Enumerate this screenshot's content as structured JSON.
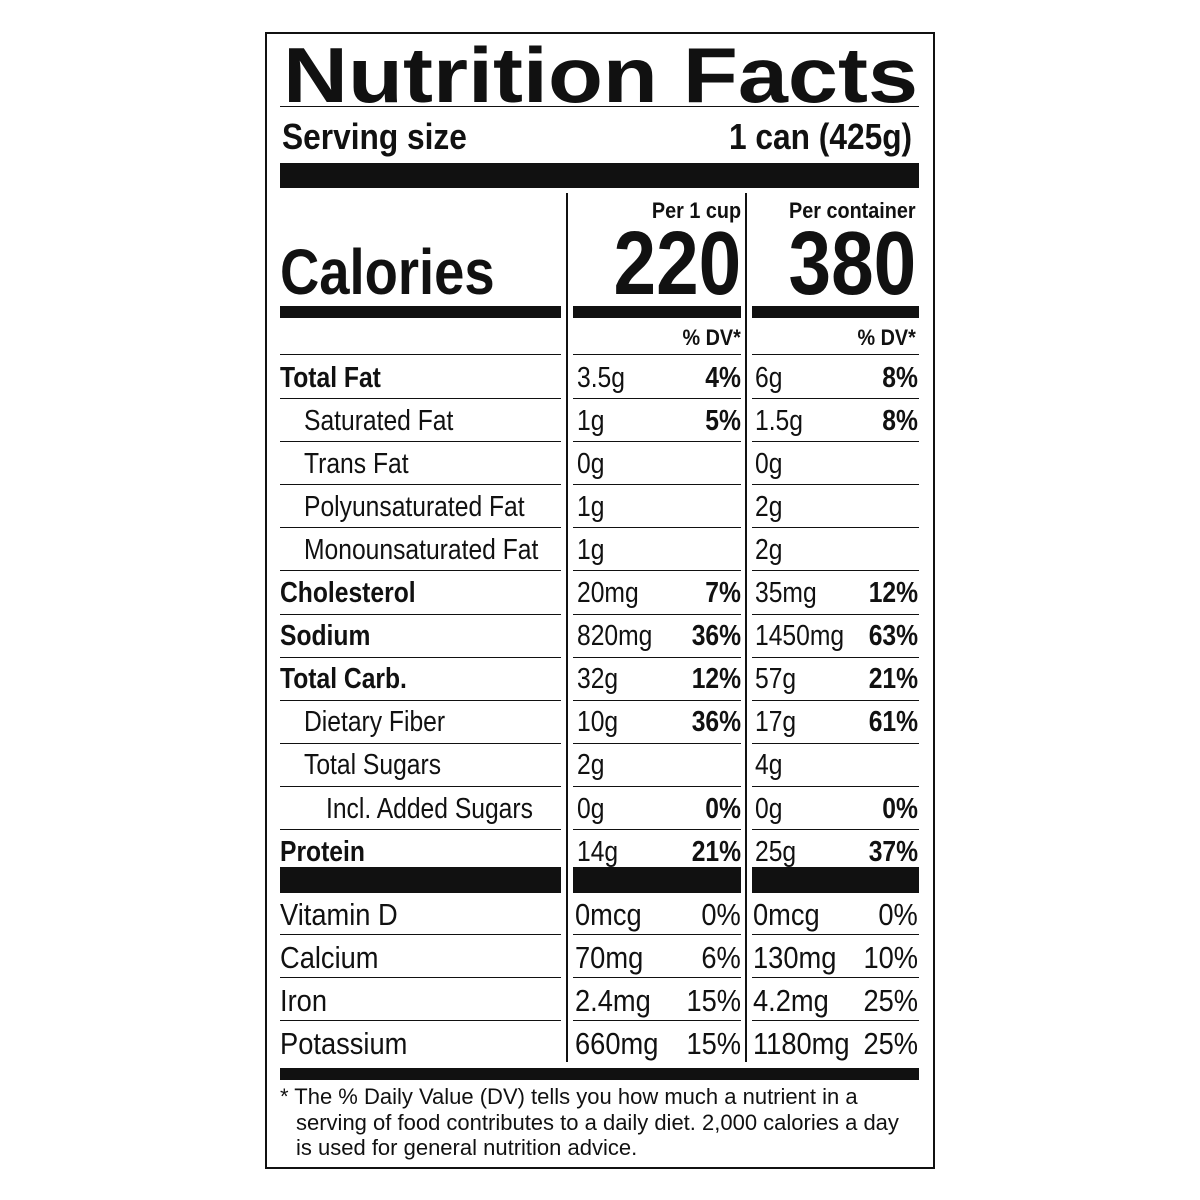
{
  "title": "Nutrition Facts",
  "serving": {
    "label": "Serving size",
    "value": "1 can (425g)"
  },
  "calories": {
    "label": "Calories",
    "columns": [
      {
        "header": "Per 1 cup",
        "value": "220"
      },
      {
        "header": "Per container",
        "value": "380"
      }
    ]
  },
  "dv_header": [
    "% DV*",
    "% DV*"
  ],
  "nutrients": [
    {
      "name": "Total Fat",
      "cols": [
        [
          "3.5g",
          "4%"
        ],
        [
          "6g",
          "8%"
        ]
      ]
    },
    {
      "name": "Saturated Fat",
      "cols": [
        [
          "1g",
          "5%"
        ],
        [
          "1.5g",
          "8%"
        ]
      ]
    },
    {
      "name": "Trans Fat",
      "cols": [
        [
          "0g",
          null
        ],
        [
          "0g",
          null
        ]
      ]
    },
    {
      "name": "Polyunsaturated Fat",
      "cols": [
        [
          "1g",
          null
        ],
        [
          "2g",
          null
        ]
      ]
    },
    {
      "name": "Monounsaturated Fat",
      "cols": [
        [
          "1g",
          null
        ],
        [
          "2g",
          null
        ]
      ]
    },
    {
      "name": "Cholesterol",
      "cols": [
        [
          "20mg",
          "7%"
        ],
        [
          "35mg",
          "12%"
        ]
      ]
    },
    {
      "name": "Sodium",
      "cols": [
        [
          "820mg",
          "36%"
        ],
        [
          "1450mg",
          "63%"
        ]
      ]
    },
    {
      "name": "Total Carb.",
      "cols": [
        [
          "32g",
          "12%"
        ],
        [
          "57g",
          "21%"
        ]
      ]
    },
    {
      "name": "Dietary Fiber",
      "cols": [
        [
          "10g",
          "36%"
        ],
        [
          "17g",
          "61%"
        ]
      ]
    },
    {
      "name": "Total Sugars",
      "cols": [
        [
          "2g",
          null
        ],
        [
          "4g",
          null
        ]
      ]
    },
    {
      "name": "Incl. Added Sugars",
      "cols": [
        [
          "0g",
          "0%"
        ],
        [
          "0g",
          "0%"
        ]
      ]
    },
    {
      "name": "Protein",
      "cols": [
        [
          "14g",
          "21%"
        ],
        [
          "25g",
          "37%"
        ]
      ]
    }
  ],
  "vitamins": [
    {
      "name": "Vitamin D",
      "cols": [
        [
          "0mcg",
          "0%"
        ],
        [
          "0mcg",
          "0%"
        ]
      ]
    },
    {
      "name": "Calcium",
      "cols": [
        [
          "70mg",
          "6%"
        ],
        [
          "130mg",
          "10%"
        ]
      ]
    },
    {
      "name": "Iron",
      "cols": [
        [
          "2.4mg",
          "15%"
        ],
        [
          "4.2mg",
          "25%"
        ]
      ]
    },
    {
      "name": "Potassium",
      "cols": [
        [
          "660mg",
          "15%"
        ],
        [
          "1180mg",
          "25%"
        ]
      ]
    }
  ],
  "footnote": "* The % Daily Value (DV) tells you how much a nutrient in a serving of food contributes to a daily diet. 2,000 calories a day is used for general nutrition advice."
}
